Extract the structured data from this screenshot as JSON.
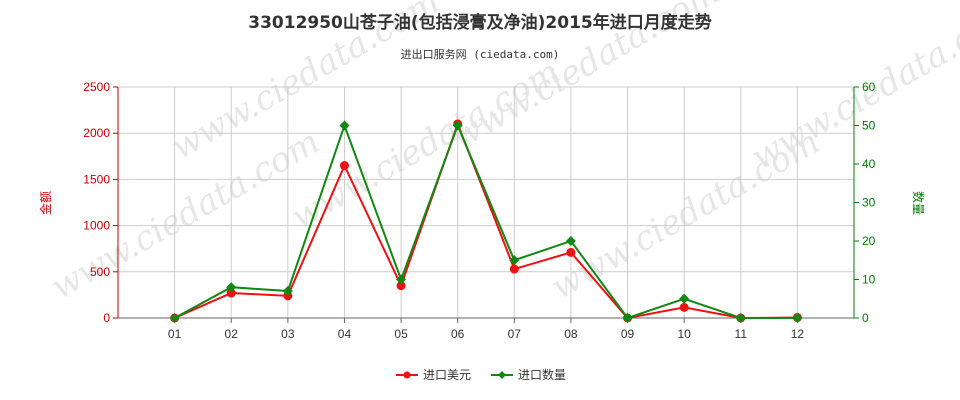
{
  "chart_data": {
    "type": "line",
    "title": "33012950山苍子油(包括浸膏及净油)2015年进口月度走势",
    "subtitle": "进出口服务网 (ciedata.com)",
    "categories": [
      "01",
      "02",
      "03",
      "04",
      "05",
      "06",
      "07",
      "08",
      "09",
      "10",
      "11",
      "12"
    ],
    "y_left": {
      "label": "金额",
      "ticks": [
        "0",
        "500",
        "1000",
        "1500",
        "2000",
        "2500"
      ],
      "ylim": [
        0,
        2500
      ],
      "color": "#cc0000"
    },
    "y_right": {
      "label": "数量",
      "ticks": [
        "0",
        "10",
        "20",
        "30",
        "40",
        "50",
        "60"
      ],
      "ylim": [
        0,
        60
      ],
      "color": "#008000"
    },
    "series": [
      {
        "name": "进口美元",
        "axis": "left",
        "color": "#ee1111",
        "values": [
          0,
          270,
          240,
          1650,
          350,
          2100,
          530,
          710,
          0,
          115,
          0,
          5
        ]
      },
      {
        "name": "进口数量",
        "axis": "right",
        "color": "#118811",
        "values": [
          0,
          8,
          7,
          50,
          10,
          50,
          15,
          20,
          0,
          5,
          0,
          0
        ]
      }
    ],
    "grid": true,
    "legend": "bottom-center",
    "watermark": "www.ciedata.com"
  }
}
